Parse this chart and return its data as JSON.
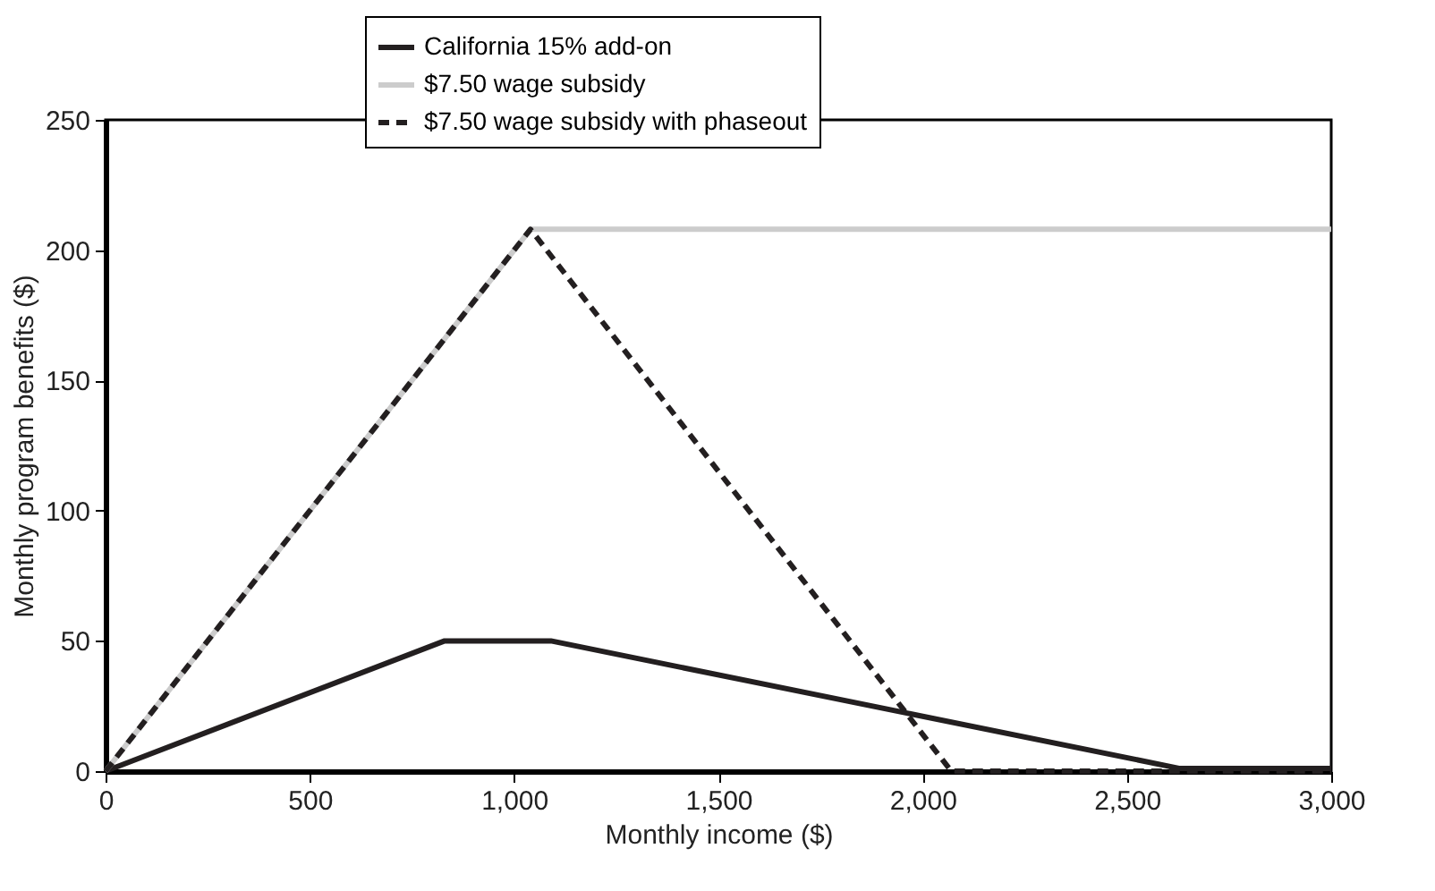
{
  "chart_data": {
    "type": "line",
    "xlabel": "Monthly income ($)",
    "ylabel": "Monthly program benefits ($)",
    "xlim": [
      0,
      3000
    ],
    "ylim": [
      0,
      250
    ],
    "xticks": [
      0,
      500,
      {
        "value": 1000,
        "label": "1,000"
      },
      {
        "value": 1500,
        "label": "1,500"
      },
      {
        "value": 2000,
        "label": "2,000"
      },
      {
        "value": 2500,
        "label": "2,500"
      },
      {
        "value": 3000,
        "label": "3,000"
      }
    ],
    "yticks": [
      0,
      50,
      100,
      150,
      200,
      250
    ],
    "grid": false,
    "legend": "top",
    "marker": "none",
    "series": [
      {
        "name": "California 15% add-on",
        "color": "#231f20",
        "line_style": "solid",
        "x": [
          0,
          830,
          1090,
          2630,
          3000
        ],
        "values": [
          0,
          50,
          50,
          1,
          1
        ]
      },
      {
        "name": "$7.50 wage subsidy",
        "color": "#cccccc",
        "line_style": "solid",
        "x": [
          0,
          1040,
          3000
        ],
        "values": [
          0,
          208,
          208
        ]
      },
      {
        "name": "$7.50 wage subsidy with phaseout",
        "color": "#231f20",
        "line_style": "dashed",
        "x": [
          0,
          1040,
          2070,
          3000
        ],
        "values": [
          0,
          208,
          0,
          0
        ]
      }
    ]
  }
}
